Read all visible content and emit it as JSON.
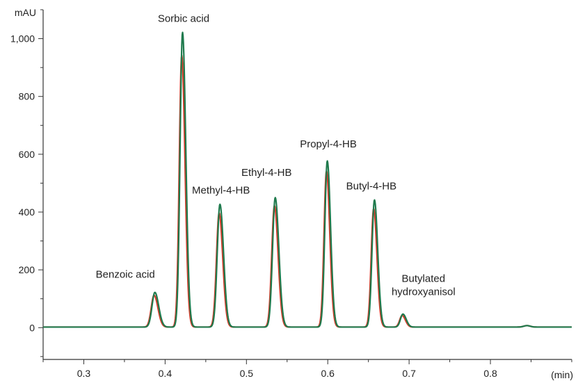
{
  "chart_data": {
    "type": "line",
    "title": "",
    "ylabel": "mAU",
    "xlabel": "(min)",
    "xlim": [
      0.25,
      0.9
    ],
    "ylim": [
      -110,
      1100
    ],
    "grid": false,
    "xticks": [
      0.3,
      0.4,
      0.5,
      0.6,
      0.7,
      0.8
    ],
    "xtick_labels": [
      "0.3",
      "0.4",
      "0.5",
      "0.6",
      "0.7",
      "0.8"
    ],
    "yticks": [
      0,
      200,
      400,
      600,
      800,
      1000
    ],
    "ytick_labels": [
      "0",
      "200",
      "400",
      "600",
      "800",
      "1,000"
    ],
    "series_colors": [
      "#d63b2a",
      "#1f7a4d"
    ],
    "peaks": [
      {
        "name": "Benzoic acid",
        "rt": 0.387,
        "height_green": 120,
        "height_red": 110,
        "width": 0.0035
      },
      {
        "name": "Sorbic acid",
        "rt": 0.421,
        "height_green": 1020,
        "height_red": 940,
        "width": 0.003
      },
      {
        "name": "Methyl-4-HB",
        "rt": 0.467,
        "height_green": 425,
        "height_red": 395,
        "width": 0.0033
      },
      {
        "name": "Ethyl-4-HB",
        "rt": 0.535,
        "height_green": 448,
        "height_red": 420,
        "width": 0.0033
      },
      {
        "name": "Propyl-4-HB",
        "rt": 0.599,
        "height_green": 575,
        "height_red": 540,
        "width": 0.003
      },
      {
        "name": "Butyl-4-HB",
        "rt": 0.657,
        "height_green": 440,
        "height_red": 410,
        "width": 0.003
      },
      {
        "name": "Butylated hydroxyanisol",
        "rt": 0.692,
        "height_green": 45,
        "height_red": 40,
        "width": 0.003
      }
    ],
    "annotations": [
      {
        "text": "Benzoic acid",
        "lines": [
          "Benzoic acid"
        ]
      },
      {
        "text": "Sorbic acid",
        "lines": [
          "Sorbic acid"
        ]
      },
      {
        "text": "Methyl-4-HB",
        "lines": [
          "Methyl-4-HB"
        ]
      },
      {
        "text": "Ethyl-4-HB",
        "lines": [
          "Ethyl-4-HB"
        ]
      },
      {
        "text": "Propyl-4-HB",
        "lines": [
          "Propyl-4-HB"
        ]
      },
      {
        "text": "Butyl-4-HB",
        "lines": [
          "Butyl-4-HB"
        ]
      },
      {
        "text": "Butylated hydroxyanisol",
        "lines": [
          "Butylated",
          "hydroxyanisol"
        ]
      }
    ]
  }
}
